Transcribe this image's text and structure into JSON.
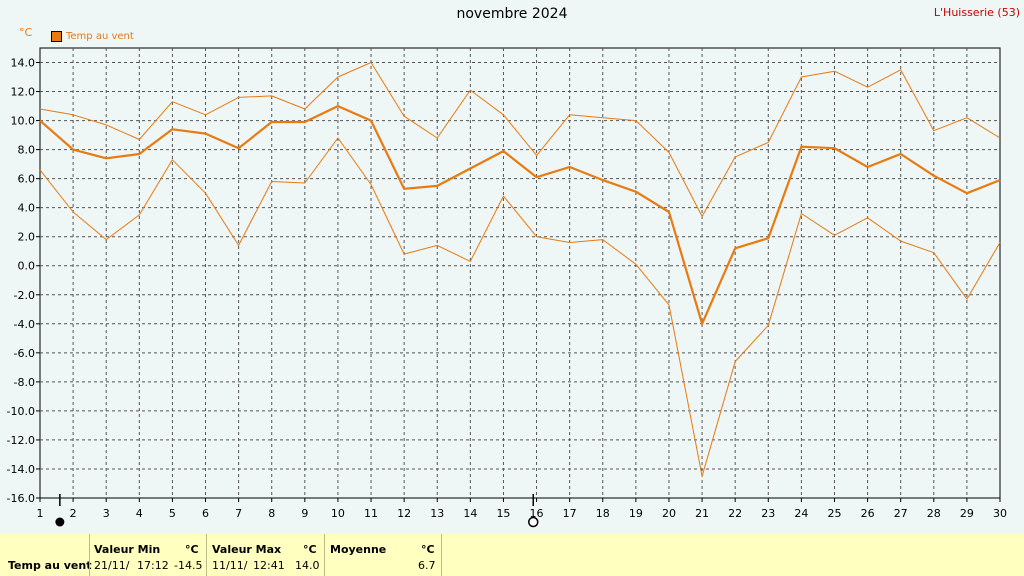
{
  "header": {
    "title": "novembre 2024",
    "location": "L'Huisserie (53)",
    "unit": "°C"
  },
  "legend": {
    "label": "Temp au vent",
    "color": "#e87a10"
  },
  "chart_data": {
    "type": "line",
    "title": "novembre 2024",
    "ylabel": "°C",
    "ylim": [
      -16,
      15
    ],
    "yticks": [
      -16,
      -14,
      -12,
      -10,
      -8,
      -6,
      -4,
      -2,
      0,
      2,
      4,
      6,
      8,
      10,
      12,
      14
    ],
    "ytick_labels": [
      "-16.0",
      "-14.0",
      "-12.0",
      "-10.0",
      "-8.0",
      "-6.0",
      "-4.0",
      "-2.0",
      "0.0",
      "2.0",
      "4.0",
      "6.0",
      "8.0",
      "10.0",
      "12.0",
      "14.0"
    ],
    "x": [
      1,
      2,
      3,
      4,
      5,
      6,
      7,
      8,
      9,
      10,
      11,
      12,
      13,
      14,
      15,
      16,
      17,
      18,
      19,
      20,
      21,
      22,
      23,
      24,
      25,
      26,
      27,
      28,
      29,
      30
    ],
    "grid": true,
    "markers": {
      "filled_circle_day": 1.6,
      "open_circle_day": 15.9
    },
    "series": [
      {
        "name": "Temp au vent",
        "role": "avg",
        "color": "#e87a10",
        "values": [
          10.0,
          8.0,
          7.4,
          7.7,
          9.4,
          9.1,
          8.1,
          9.9,
          9.9,
          11.0,
          10.0,
          5.3,
          5.5,
          6.7,
          7.9,
          6.1,
          6.8,
          5.9,
          5.1,
          3.7,
          -4.0,
          1.2,
          1.9,
          8.2,
          8.1,
          6.8,
          7.7,
          6.2,
          5.0,
          5.9
        ]
      },
      {
        "role": "max",
        "color": "#e87a10",
        "values": [
          10.8,
          10.4,
          9.7,
          8.7,
          11.3,
          10.4,
          11.6,
          11.7,
          10.8,
          13.0,
          14.0,
          10.3,
          8.8,
          12.1,
          10.4,
          7.6,
          10.4,
          10.2,
          10.0,
          7.8,
          3.4,
          7.5,
          8.5,
          13.0,
          13.4,
          12.3,
          13.5,
          9.3,
          10.2,
          8.8
        ]
      },
      {
        "role": "min",
        "color": "#e87a10",
        "values": [
          6.6,
          3.7,
          1.8,
          3.5,
          7.3,
          5.0,
          1.4,
          5.8,
          5.7,
          8.8,
          5.6,
          0.8,
          1.4,
          0.3,
          4.8,
          2.0,
          1.6,
          1.8,
          0.1,
          -2.7,
          -14.5,
          -6.6,
          -4.1,
          3.6,
          2.1,
          3.3,
          1.7,
          0.9,
          -2.3,
          1.6
        ]
      }
    ]
  },
  "footer": {
    "row_label": "Temp au vent",
    "min": {
      "label": "Valeur Min",
      "unit": "°C",
      "date": "21/11/",
      "time": "17:12",
      "value": "-14.5"
    },
    "max": {
      "label": "Valeur Max",
      "unit": "°C",
      "date": "11/11/",
      "time": "12:41",
      "value": "14.0"
    },
    "mean": {
      "label": "Moyenne",
      "unit": "°C",
      "value": "6.7"
    }
  }
}
